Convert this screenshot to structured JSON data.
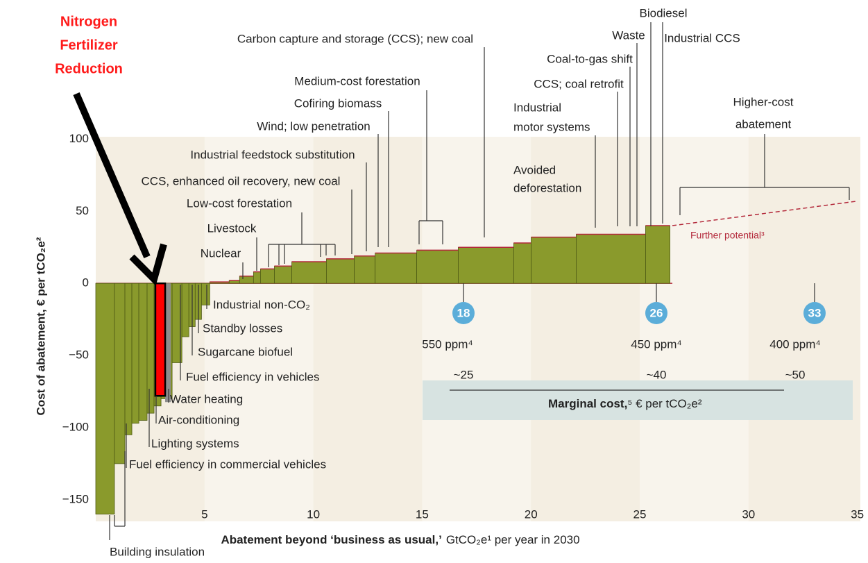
{
  "chart_data": {
    "type": "bar",
    "highlight_label": [
      "Nitrogen",
      "Fertilizer",
      "Reduction"
    ],
    "y_label": "Cost of abatement, € per tCO₂e²",
    "x_label_bold": "Abatement beyond ‘business as usual,’",
    "x_label": "GtCO₂e¹ per year in 2030",
    "color": "#8a9a2c",
    "edge_color": "#b3283a",
    "widths": [
      0.86,
      0.48,
      0.32,
      0.32,
      0.38,
      0.32,
      0.32,
      0.51,
      0.45,
      0.32,
      0.29,
      0.29,
      0.38,
      0.89,
      0.48,
      0.64,
      0.32,
      0.64,
      0.8,
      1.59,
      1.28,
      0.96,
      1.91,
      1.91,
      2.55,
      0.8,
      2.07,
      3.19,
      1.12
    ],
    "values": [
      -160,
      -125,
      -105,
      -97,
      -95,
      -90,
      -85,
      -80,
      -55,
      -37,
      -30,
      -25,
      -15,
      1,
      2,
      5,
      8,
      10,
      12,
      15,
      17,
      19,
      21,
      23,
      25,
      28,
      32,
      34,
      40
    ],
    "highlight": {
      "x": [
        2.74,
        3.19
      ],
      "value": -78,
      "color": "#ff0000"
    },
    "further_potential": {
      "label": "Further potential³",
      "x": [
        26.5,
        35
      ],
      "y": [
        40,
        57
      ]
    },
    "xlim": [
      0,
      35.3
    ],
    "ylim": [
      -165,
      105
    ],
    "xticks": [
      5,
      10,
      15,
      20,
      25,
      30,
      35
    ],
    "yticks": [
      {
        "value": -150,
        "label": "−150"
      },
      {
        "value": -100,
        "label": "−100"
      },
      {
        "value": -50,
        "label": "−50"
      },
      0,
      50,
      100
    ],
    "annotations": [
      "Carbon capture and storage (CCS); new coal",
      "Medium-cost forestation",
      "Cofiring biomass",
      "Wind; low penetration",
      "Industrial feedstock substitution",
      "CCS, enhanced oil recovery, new coal",
      "Low-cost forestation",
      "Livestock",
      "Nuclear",
      "Biodiesel",
      "Waste",
      "Industrial CCS",
      "Coal-to-gas shift",
      "CCS; coal retrofit",
      "Industrial",
      "motor systems",
      "Avoided",
      "deforestation",
      "Higher-cost",
      "abatement",
      "Industrial non-CO₂",
      "Standby losses",
      "Sugarcane biofuel",
      "Fuel efficiency in vehicles",
      "Water heating",
      "Air-conditioning",
      "Lighting systems",
      "Fuel efficiency in commercial vehicles",
      "Building insulation"
    ],
    "scenarios": [
      {
        "circle": "18",
        "ppm": "550 ppm⁴",
        "cost": "~25"
      },
      {
        "circle": "26",
        "ppm": "450 ppm⁴",
        "cost": "~40"
      },
      {
        "circle": "33",
        "ppm": "400 ppm⁴",
        "cost": "~50"
      }
    ],
    "marginal_bold": "Marginal cost,",
    "marginal_rest": "⁵ € per tCO₂e²"
  }
}
